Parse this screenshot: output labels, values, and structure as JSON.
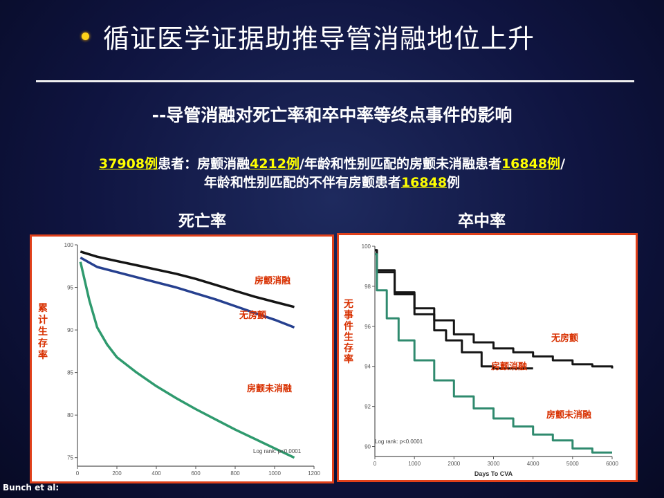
{
  "title": "循证医学证据助推导管消融地位上升",
  "subtitle": "--导管消融对死亡率和卒中率等终点事件的影响",
  "desc": {
    "n_total": "37908例",
    "t1": "患者：",
    "t2": "房颤消融",
    "n_ablation": "4212例",
    "t3": "/年龄和性别匹配的房颤未消融患者",
    "n_af_no_ablation": "16848例",
    "t4": "/",
    "t5": "年龄和性别匹配的不伴有房颤患者",
    "n_no_af": "16848",
    "t6": "例"
  },
  "headers": {
    "mortality": "死亡率",
    "stroke": "卒中率"
  },
  "footer": "Bunch et al:",
  "colors": {
    "accent_border": "#e0401a",
    "highlight": "#ffff00",
    "label_red": "#d83000"
  },
  "chart_data": [
    {
      "type": "line",
      "title": "死亡率",
      "ylabel": "累计生存率",
      "xlabel": "",
      "xlim": [
        0,
        1200
      ],
      "ylim": [
        74,
        100
      ],
      "x_ticks": [
        "0",
        "200",
        "400",
        "600",
        "800",
        "1000",
        "1200"
      ],
      "y_ticks": [
        "75",
        "80",
        "85",
        "90",
        "95",
        "100"
      ],
      "annotation": "Log rank: p<0.0001",
      "series": [
        {
          "name": "房颤消融",
          "color": "#151515",
          "x": [
            15,
            100,
            200,
            300,
            400,
            500,
            600,
            700,
            800,
            900,
            1000,
            1100
          ],
          "y": [
            99.2,
            98.6,
            98.1,
            97.6,
            97.1,
            96.6,
            96.0,
            95.3,
            94.6,
            93.9,
            93.3,
            92.7
          ]
        },
        {
          "name": "无房颤",
          "color": "#26408f",
          "x": [
            15,
            100,
            200,
            300,
            400,
            500,
            600,
            700,
            800,
            900,
            1000,
            1100
          ],
          "y": [
            98.5,
            97.4,
            96.8,
            96.2,
            95.6,
            95.0,
            94.3,
            93.6,
            92.8,
            92.0,
            91.2,
            90.3
          ]
        },
        {
          "name": "房颤未消融",
          "color": "#2f9a6e",
          "x": [
            15,
            60,
            100,
            150,
            200,
            300,
            400,
            500,
            600,
            700,
            800,
            900,
            1000,
            1100
          ],
          "y": [
            98.0,
            93.5,
            90.3,
            88.3,
            86.8,
            85.0,
            83.4,
            82.0,
            80.7,
            79.5,
            78.3,
            77.2,
            76.1,
            75.0
          ]
        }
      ]
    },
    {
      "type": "line",
      "title": "卒中率",
      "ylabel": "无事件生存率",
      "xlabel": "Days To CVA",
      "xlim": [
        0,
        6000
      ],
      "ylim": [
        89.5,
        100
      ],
      "x_ticks": [
        "0",
        "1000",
        "2000",
        "3000",
        "4000",
        "5000",
        "6000"
      ],
      "y_ticks": [
        "90",
        "92",
        "94",
        "96",
        "98",
        "100"
      ],
      "annotation": "Log rank: p<0.0001",
      "series": [
        {
          "name": "无房颤",
          "color": "#151515",
          "x": [
            0,
            50,
            500,
            1000,
            1500,
            2000,
            2500,
            3000,
            3500,
            4000,
            4500,
            5000,
            5500,
            6000
          ],
          "y": [
            99.8,
            98.7,
            97.7,
            96.9,
            96.3,
            95.6,
            95.2,
            94.9,
            94.7,
            94.5,
            94.3,
            94.1,
            94.0,
            93.9
          ]
        },
        {
          "name": "房颤消融",
          "color": "#151515",
          "x": [
            0,
            50,
            500,
            1000,
            1500,
            1800,
            2000,
            2200,
            2400,
            2700,
            3000,
            4000
          ],
          "y": [
            99.8,
            98.8,
            97.6,
            96.6,
            95.8,
            95.3,
            95.3,
            94.7,
            94.7,
            94.0,
            93.9,
            93.9
          ]
        },
        {
          "name": "房颤未消融",
          "color": "#2f8a6e",
          "x": [
            0,
            50,
            300,
            600,
            1000,
            1500,
            2000,
            2500,
            3000,
            3500,
            4000,
            4500,
            5000,
            5500,
            6000
          ],
          "y": [
            99.6,
            97.8,
            96.4,
            95.3,
            94.3,
            93.3,
            92.5,
            91.9,
            91.4,
            91.0,
            90.6,
            90.3,
            89.9,
            89.7,
            89.7
          ]
        }
      ]
    }
  ]
}
